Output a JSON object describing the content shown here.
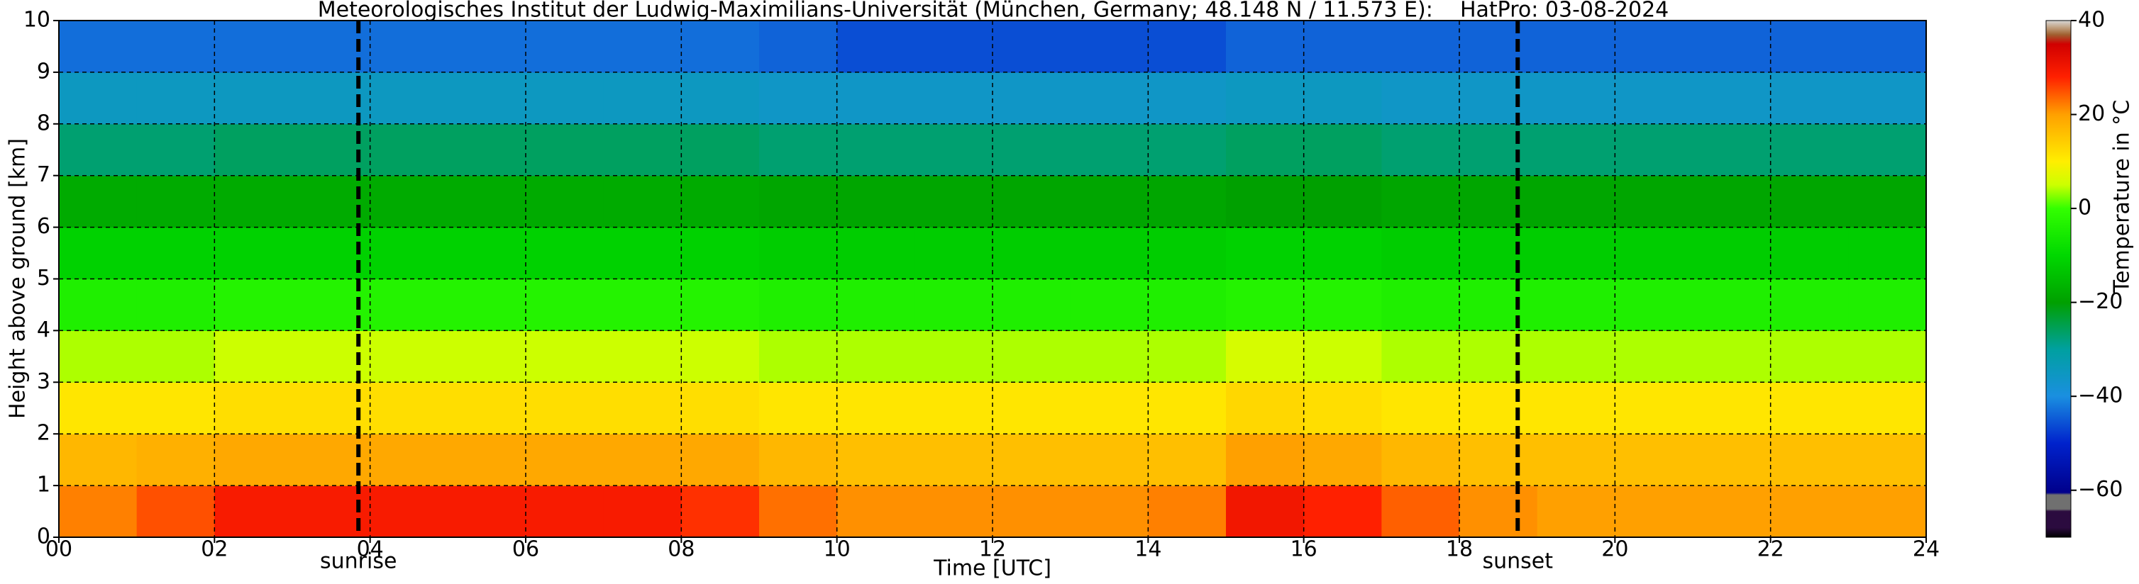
{
  "chart_data": {
    "type": "heatmap",
    "title": "Meteorologisches Institut der Ludwig-Maximilians-Universität (München, Germany; 48.148 N / 11.573 E):    HatPro: 03-08-2024",
    "x_label": "Time [UTC]",
    "y_label": "Height above ground [km]",
    "colorbar_label": "Temperature in °C",
    "xlim": [
      0,
      24
    ],
    "xticks": [
      {
        "value": 0,
        "label": "00"
      },
      {
        "value": 2,
        "label": "02"
      },
      {
        "value": 4,
        "label": "04"
      },
      {
        "value": 6,
        "label": "06"
      },
      {
        "value": 8,
        "label": "08"
      },
      {
        "value": 10,
        "label": "10"
      },
      {
        "value": 12,
        "label": "12"
      },
      {
        "value": 14,
        "label": "14"
      },
      {
        "value": 16,
        "label": "16"
      },
      {
        "value": 18,
        "label": "18"
      },
      {
        "value": 20,
        "label": "20"
      },
      {
        "value": 22,
        "label": "22"
      },
      {
        "value": 24,
        "label": "24"
      }
    ],
    "ylim": [
      0,
      10
    ],
    "yticks": [
      0,
      1,
      2,
      3,
      4,
      5,
      6,
      7,
      8,
      9,
      10
    ],
    "grid": true,
    "annotations": [
      {
        "label": "sunrise",
        "x": 3.85
      },
      {
        "label": "sunset",
        "x": 18.75
      }
    ],
    "clim": [
      -70,
      40
    ],
    "cticks": [
      {
        "value": -60,
        "label": "−60"
      },
      {
        "value": -40,
        "label": "−40"
      },
      {
        "value": -20,
        "label": "−20"
      },
      0,
      20,
      40
    ],
    "colorscale": [
      [
        -70,
        "#000000"
      ],
      [
        -68,
        "#2b0b3f"
      ],
      [
        -64.5,
        "#2b0b3f"
      ],
      [
        -64,
        "#707070"
      ],
      [
        -61,
        "#707070"
      ],
      [
        -60.5,
        "#00008b"
      ],
      [
        -50,
        "#0022cc"
      ],
      [
        -40,
        "#1a8fe0"
      ],
      [
        -30,
        "#00a0a0"
      ],
      [
        -20,
        "#00a000"
      ],
      [
        -10,
        "#00d800"
      ],
      [
        0,
        "#33ff00"
      ],
      [
        5,
        "#ccff00"
      ],
      [
        10,
        "#ffee00"
      ],
      [
        20,
        "#ffa000"
      ],
      [
        28,
        "#ff2000"
      ],
      [
        35,
        "#d00000"
      ],
      [
        37,
        "#a06030"
      ],
      [
        38.5,
        "#c0a080"
      ],
      [
        40,
        "#d8d8d8"
      ]
    ],
    "x_bins": [
      0,
      1,
      2,
      3,
      4,
      5,
      6,
      7,
      8,
      9,
      10,
      11,
      12,
      13,
      14,
      15,
      16,
      17,
      18,
      19,
      20,
      21,
      22,
      23,
      24
    ],
    "y_bins": [
      0,
      1,
      2,
      3,
      4,
      5,
      6,
      7,
      8,
      9,
      10
    ],
    "z": [
      [
        22,
        25,
        29,
        29,
        29,
        29,
        29,
        29,
        27,
        23,
        21,
        21,
        21,
        21,
        22,
        30,
        28,
        24,
        21,
        20,
        20,
        20,
        20,
        20
      ],
      [
        17,
        18,
        19,
        19,
        19,
        19,
        19,
        19,
        19,
        17,
        16,
        16,
        16,
        16,
        16,
        20,
        19,
        17,
        16,
        16,
        16,
        16,
        16,
        16
      ],
      [
        11,
        11,
        12,
        12,
        12,
        12,
        12,
        12,
        12,
        11,
        11,
        11,
        11,
        11,
        11,
        13,
        12,
        11,
        11,
        11,
        11,
        11,
        11,
        11
      ],
      [
        4,
        4,
        5,
        5,
        5,
        5,
        5,
        5,
        5,
        4,
        4,
        4,
        4,
        4,
        4,
        6,
        5,
        4,
        4,
        4,
        4,
        4,
        4,
        4
      ],
      [
        -4,
        -4,
        -3,
        -3,
        -3,
        -3,
        -3,
        -3,
        -3,
        -4,
        -4,
        -4,
        -4,
        -4,
        -4,
        -3,
        -3,
        -4,
        -4,
        -4,
        -4,
        -4,
        -4,
        -4
      ],
      [
        -11,
        -11,
        -11,
        -11,
        -11,
        -11,
        -11,
        -11,
        -11,
        -12,
        -12,
        -12,
        -12,
        -12,
        -12,
        -11,
        -11,
        -12,
        -12,
        -12,
        -12,
        -12,
        -12,
        -12
      ],
      [
        -18,
        -18,
        -18,
        -18,
        -18,
        -18,
        -18,
        -18,
        -18,
        -19,
        -19,
        -19,
        -19,
        -19,
        -19,
        -20,
        -20,
        -19,
        -19,
        -19,
        -19,
        -19,
        -19,
        -19
      ],
      [
        -27,
        -27,
        -26,
        -26,
        -26,
        -26,
        -26,
        -26,
        -26,
        -27,
        -27,
        -27,
        -27,
        -27,
        -27,
        -26,
        -26,
        -27,
        -27,
        -27,
        -27,
        -27,
        -27,
        -27
      ],
      [
        -35,
        -35,
        -35,
        -35,
        -35,
        -35,
        -35,
        -35,
        -35,
        -36,
        -36,
        -36,
        -36,
        -36,
        -36,
        -35,
        -35,
        -36,
        -36,
        -36,
        -36,
        -36,
        -36,
        -36
      ],
      [
        -43,
        -43,
        -43,
        -43,
        -43,
        -43,
        -43,
        -43,
        -43,
        -44,
        -46,
        -46,
        -46,
        -46,
        -46,
        -44,
        -44,
        -44,
        -44,
        -44,
        -44,
        -44,
        -44,
        -44
      ]
    ]
  }
}
